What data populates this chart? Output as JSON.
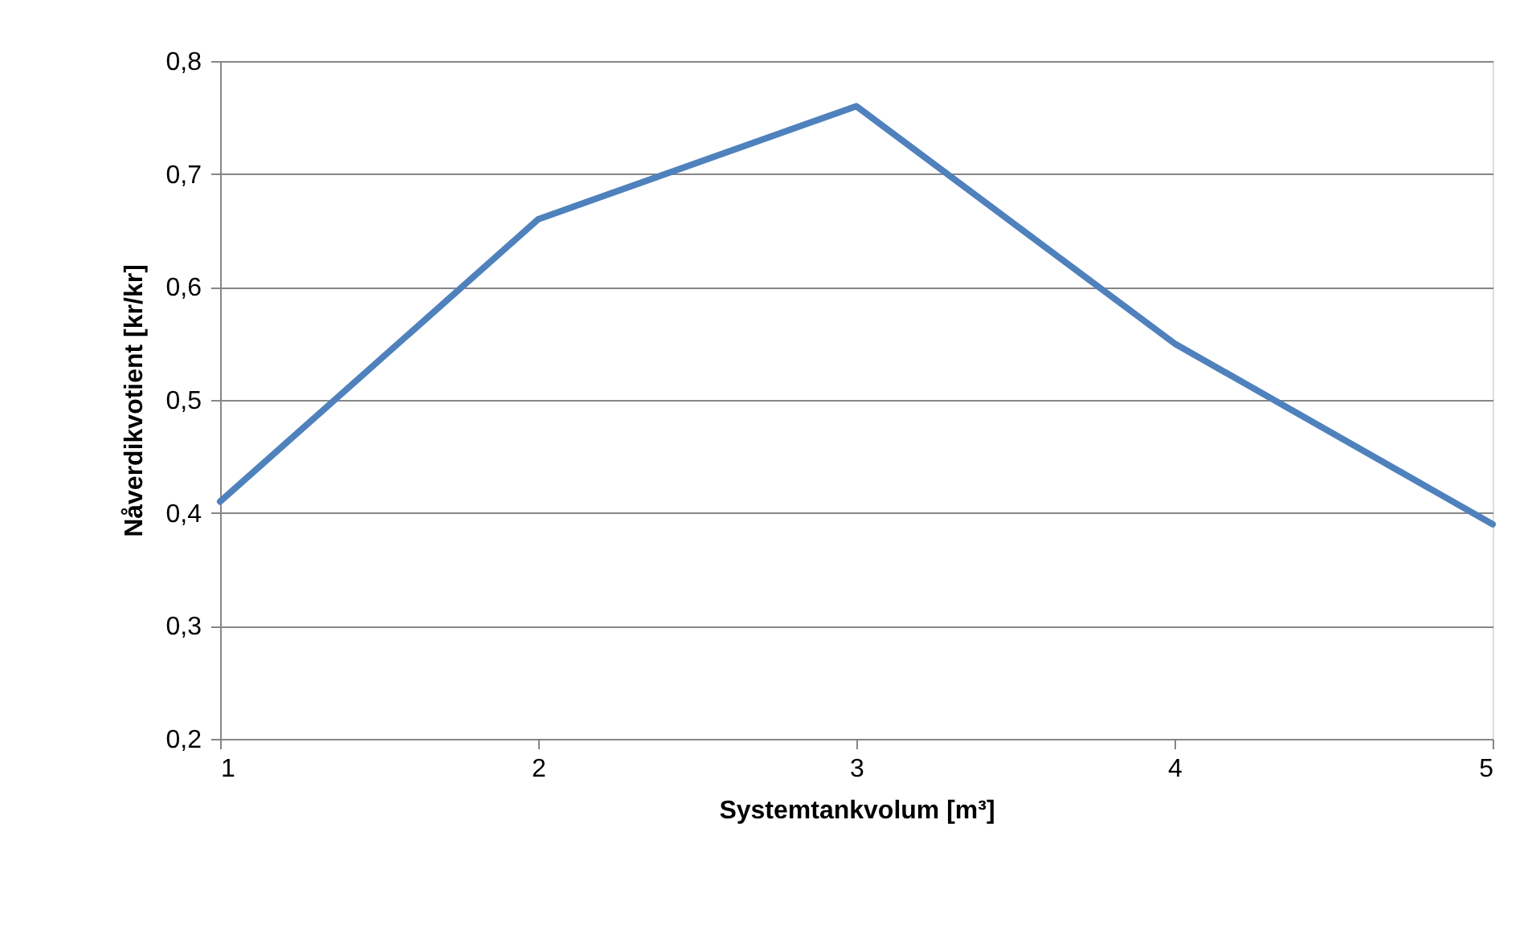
{
  "chart_data": {
    "type": "line",
    "xlabel": "Systemtankvolum [m³]",
    "ylabel": "Nåverdikvotient [kr/kr]",
    "x": [
      1,
      2,
      3,
      4,
      5
    ],
    "series": [
      {
        "color": "#4f81bd",
        "values": [
          0.41,
          0.66,
          0.76,
          0.55,
          0.39
        ]
      }
    ],
    "xlim": [
      1,
      5
    ],
    "xticks": [
      1,
      2,
      3,
      4,
      5
    ],
    "ylim": [
      0.2,
      0.8
    ],
    "yticks": [
      {
        "value": 0.2,
        "label": "0,2"
      },
      {
        "value": 0.3,
        "label": "0,3"
      },
      {
        "value": 0.4,
        "label": "0,4"
      },
      {
        "value": 0.5,
        "label": "0,5"
      },
      {
        "value": 0.6,
        "label": "0,6"
      },
      {
        "value": 0.7,
        "label": "0,7"
      },
      {
        "value": 0.8,
        "label": "0,8"
      }
    ],
    "grid": "y",
    "marker": "none",
    "line_style": "solid"
  }
}
